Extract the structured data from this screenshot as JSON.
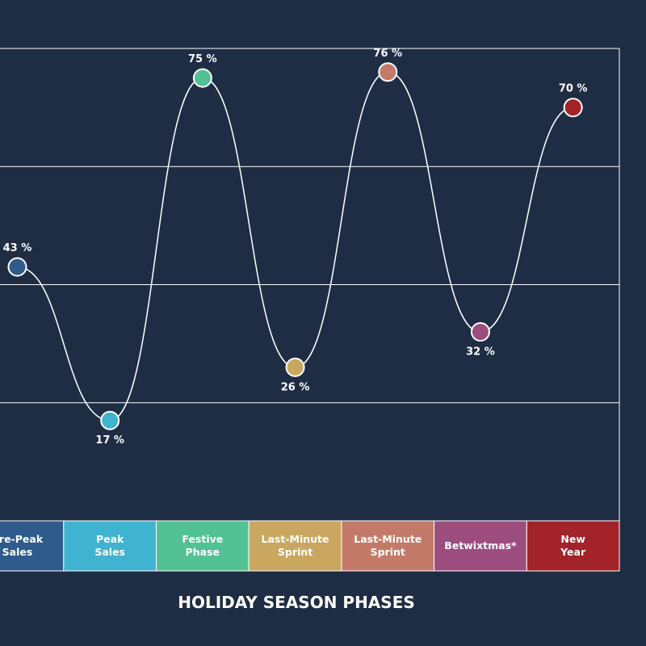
{
  "chart_data": {
    "type": "line",
    "title": "HOLIDAY SEASON PHASES",
    "categories": [
      "Pre-Peak Sales",
      "Peak Sales",
      "Festive Phase",
      "Last-Minute Sprint",
      "Last-Minute Sprint",
      "Betwixtmas*",
      "New Year"
    ],
    "values": [
      43,
      17,
      75,
      26,
      76,
      32,
      70
    ],
    "value_labels": [
      "43 %",
      "17 %",
      "75 %",
      "26 %",
      "76 %",
      "32 %",
      "70 %"
    ],
    "colors": [
      "#2e5b8c",
      "#3fb3cf",
      "#52c194",
      "#c9a760",
      "#c47a68",
      "#9c4d7e",
      "#a3232a"
    ],
    "ylim": [
      0,
      80
    ],
    "yticks": [
      0,
      20,
      40,
      60,
      80
    ],
    "grid": true
  }
}
